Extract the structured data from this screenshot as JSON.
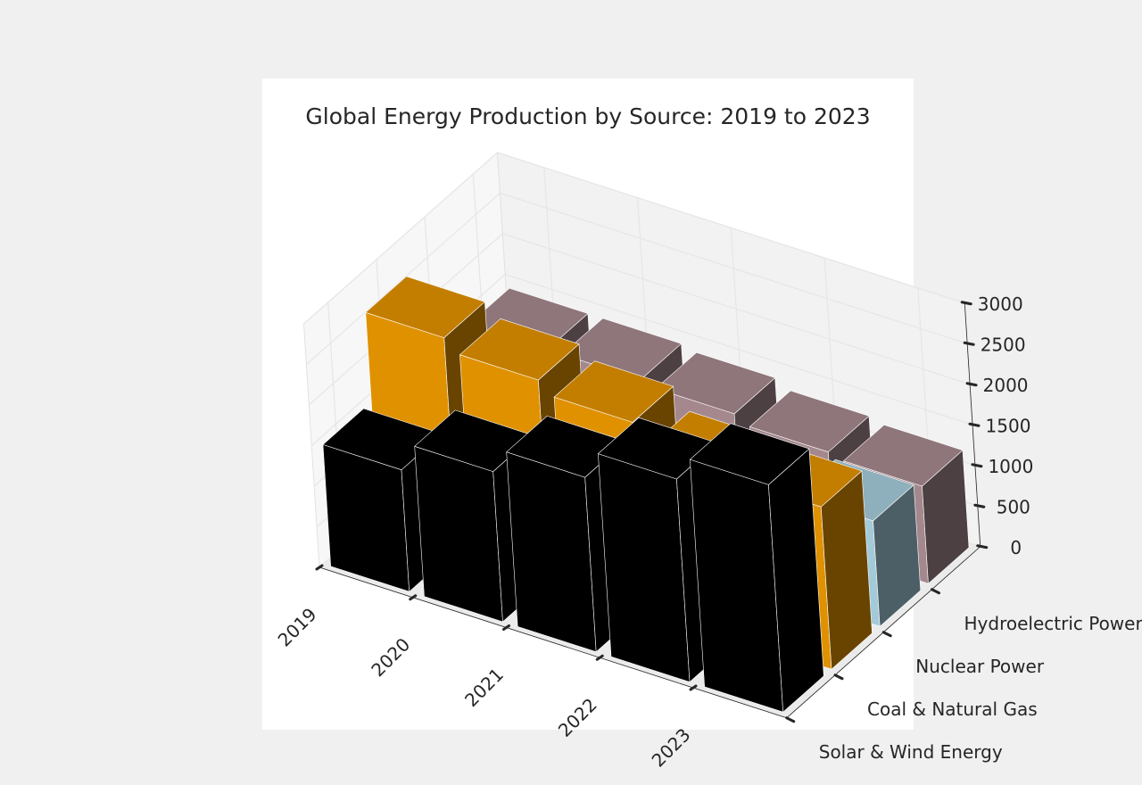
{
  "chart_data": {
    "type": "bar3d",
    "title": "Global Energy Production by Source: 2019 to 2023",
    "xlabel": "",
    "ylabel": "",
    "zlabel": "",
    "categories": [
      "2019",
      "2020",
      "2021",
      "2022",
      "2023"
    ],
    "series": [
      {
        "name": "Solar & Wind Energy",
        "color": "#000000",
        "values": [
          1500,
          1850,
          2150,
          2500,
          2800
        ]
      },
      {
        "name": "Coal & Natural Gas",
        "color": "#e09100",
        "values": [
          2600,
          2450,
          2300,
          2050,
          2000
        ]
      },
      {
        "name": "Nuclear Power",
        "color": "#a3cad8",
        "values": [
          1150,
          1100,
          1050,
          1100,
          1300
        ]
      },
      {
        "name": "Hydroelectric Power",
        "color": "#a4888d",
        "values": [
          1400,
          1400,
          1350,
          1250,
          1200
        ]
      }
    ],
    "zlim": [
      0,
      3000
    ],
    "z_ticks": [
      0,
      500,
      1000,
      1500,
      2000,
      2500,
      3000
    ],
    "grid": true,
    "background": "#f0f0f0",
    "axes_background": "#ffffff",
    "pane_color": "#f2f2f2",
    "grid_color": "#e6e6e6"
  }
}
